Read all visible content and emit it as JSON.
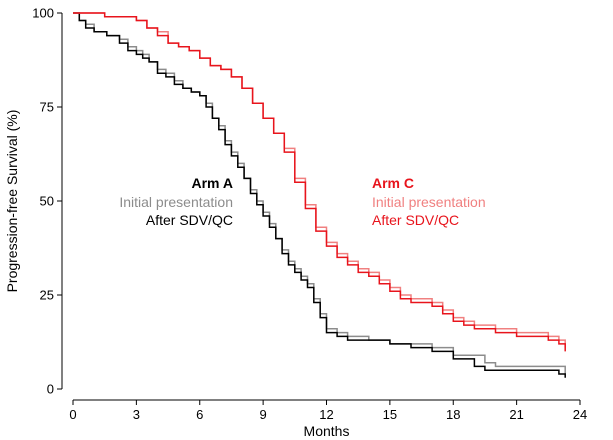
{
  "chart_data": {
    "type": "line",
    "title": "",
    "xlabel": "Months",
    "ylabel": "Progression-free Survival (%)",
    "xlim": [
      0,
      24
    ],
    "ylim": [
      0,
      100
    ],
    "xticks": [
      0,
      3,
      6,
      9,
      12,
      15,
      18,
      21,
      24
    ],
    "yticks": [
      0,
      25,
      50,
      75,
      100
    ],
    "xtick_labels": [
      "0",
      "3",
      "6",
      "9",
      "12",
      "15",
      "18",
      "21",
      "24"
    ],
    "ytick_labels": [
      "0",
      "25",
      "50",
      "75",
      "100"
    ],
    "grid": false,
    "legends": [
      {
        "group": "Arm A",
        "entries": [
          "Initial presentation",
          "After SDV/QC"
        ],
        "colors": [
          "#8c8c8c",
          "#000000"
        ]
      },
      {
        "group": "Arm C",
        "entries": [
          "Initial presentation",
          "After SDV/QC"
        ],
        "colors": [
          "#f08080",
          "#e8141c"
        ]
      }
    ],
    "series": [
      {
        "group": "Arm A",
        "name": "Initial presentation",
        "color": "#8c8c8c",
        "x": [
          0,
          0.3,
          0.6,
          1.0,
          1.6,
          2.2,
          2.6,
          3.0,
          3.3,
          3.6,
          4.0,
          4.4,
          4.8,
          5.2,
          5.6,
          6.0,
          6.3,
          6.6,
          6.9,
          7.2,
          7.5,
          7.8,
          8.1,
          8.4,
          8.7,
          9.0,
          9.3,
          9.6,
          9.9,
          10.2,
          10.5,
          10.8,
          11.1,
          11.4,
          11.7,
          12.0,
          12.5,
          13.0,
          14.0,
          15.0,
          16.0,
          17.0,
          18.0,
          19.0,
          19.5,
          20.0,
          21.0,
          22.0,
          23.0,
          23.3
        ],
        "y": [
          100,
          98,
          97,
          95,
          94,
          93,
          91,
          90,
          89,
          87,
          85,
          84,
          82,
          80,
          79,
          78,
          76,
          72,
          70,
          66,
          63,
          60,
          56,
          53,
          50,
          47,
          44,
          40,
          37,
          34,
          32,
          30,
          28,
          24,
          20,
          16,
          15,
          14,
          13,
          12,
          12,
          11,
          9,
          9,
          7,
          6,
          6,
          6,
          6,
          4
        ]
      },
      {
        "group": "Arm A",
        "name": "After SDV/QC",
        "color": "#000000",
        "x": [
          0,
          0.3,
          0.6,
          1.0,
          1.6,
          2.2,
          2.6,
          3.0,
          3.3,
          3.6,
          4.0,
          4.4,
          4.8,
          5.2,
          5.6,
          6.0,
          6.3,
          6.6,
          6.9,
          7.2,
          7.5,
          7.8,
          8.1,
          8.4,
          8.7,
          9.0,
          9.3,
          9.6,
          9.9,
          10.2,
          10.5,
          10.8,
          11.1,
          11.4,
          11.7,
          12.0,
          12.5,
          13.0,
          14.0,
          15.0,
          16.0,
          17.0,
          18.0,
          19.0,
          19.5,
          20.0,
          21.0,
          22.0,
          23.0,
          23.3
        ],
        "y": [
          100,
          98,
          96,
          95,
          94,
          92,
          90,
          89,
          88,
          87,
          84,
          83,
          81,
          80,
          79,
          78,
          75,
          72,
          69,
          65,
          62,
          59,
          56,
          52,
          49,
          46,
          43,
          40,
          36,
          33,
          31,
          29,
          27,
          23,
          19,
          15,
          14,
          13,
          13,
          12,
          11,
          10,
          8,
          6,
          5,
          5,
          5,
          5,
          4,
          3
        ]
      },
      {
        "group": "Arm C",
        "name": "Initial presentation",
        "color": "#f08080",
        "x": [
          0,
          0.5,
          1.5,
          2.5,
          3.0,
          3.5,
          4.0,
          4.5,
          5.0,
          5.5,
          6.0,
          6.5,
          7.0,
          7.5,
          8.0,
          8.5,
          9.0,
          9.5,
          10.0,
          10.5,
          11.0,
          11.5,
          12.0,
          12.5,
          13.0,
          13.5,
          14.0,
          14.5,
          15.0,
          15.5,
          16.0,
          16.5,
          17.0,
          17.5,
          18.0,
          18.5,
          19.0,
          19.5,
          20.0,
          20.5,
          21.0,
          21.5,
          22.0,
          22.5,
          23.0,
          23.3
        ],
        "y": [
          100,
          100,
          99,
          99,
          98,
          96,
          95,
          92,
          91,
          90,
          88,
          86,
          85,
          83,
          80,
          76,
          72,
          68,
          64,
          56,
          49,
          43,
          39,
          36,
          34,
          32,
          31,
          29,
          27,
          25,
          24,
          24,
          23,
          21,
          19,
          18,
          17,
          17,
          16,
          16,
          15,
          15,
          15,
          14,
          13,
          11
        ]
      },
      {
        "group": "Arm C",
        "name": "After SDV/QC",
        "color": "#e8141c",
        "x": [
          0,
          0.5,
          1.5,
          2.5,
          3.0,
          3.5,
          4.0,
          4.5,
          5.0,
          5.5,
          6.0,
          6.5,
          7.0,
          7.5,
          8.0,
          8.5,
          9.0,
          9.5,
          10.0,
          10.5,
          11.0,
          11.5,
          12.0,
          12.5,
          13.0,
          13.5,
          14.0,
          14.5,
          15.0,
          15.5,
          16.0,
          16.5,
          17.0,
          17.5,
          18.0,
          18.5,
          19.0,
          19.5,
          20.0,
          20.5,
          21.0,
          21.5,
          22.0,
          22.5,
          23.0,
          23.3
        ],
        "y": [
          100,
          100,
          99,
          99,
          98,
          96,
          94,
          92,
          91,
          90,
          88,
          86,
          85,
          83,
          80,
          76,
          72,
          68,
          63,
          55,
          48,
          42,
          38,
          35,
          33,
          31,
          30,
          28,
          26,
          24,
          23,
          23,
          22,
          20,
          18,
          17,
          16,
          16,
          15,
          15,
          14,
          14,
          14,
          13,
          12,
          10
        ]
      }
    ]
  }
}
